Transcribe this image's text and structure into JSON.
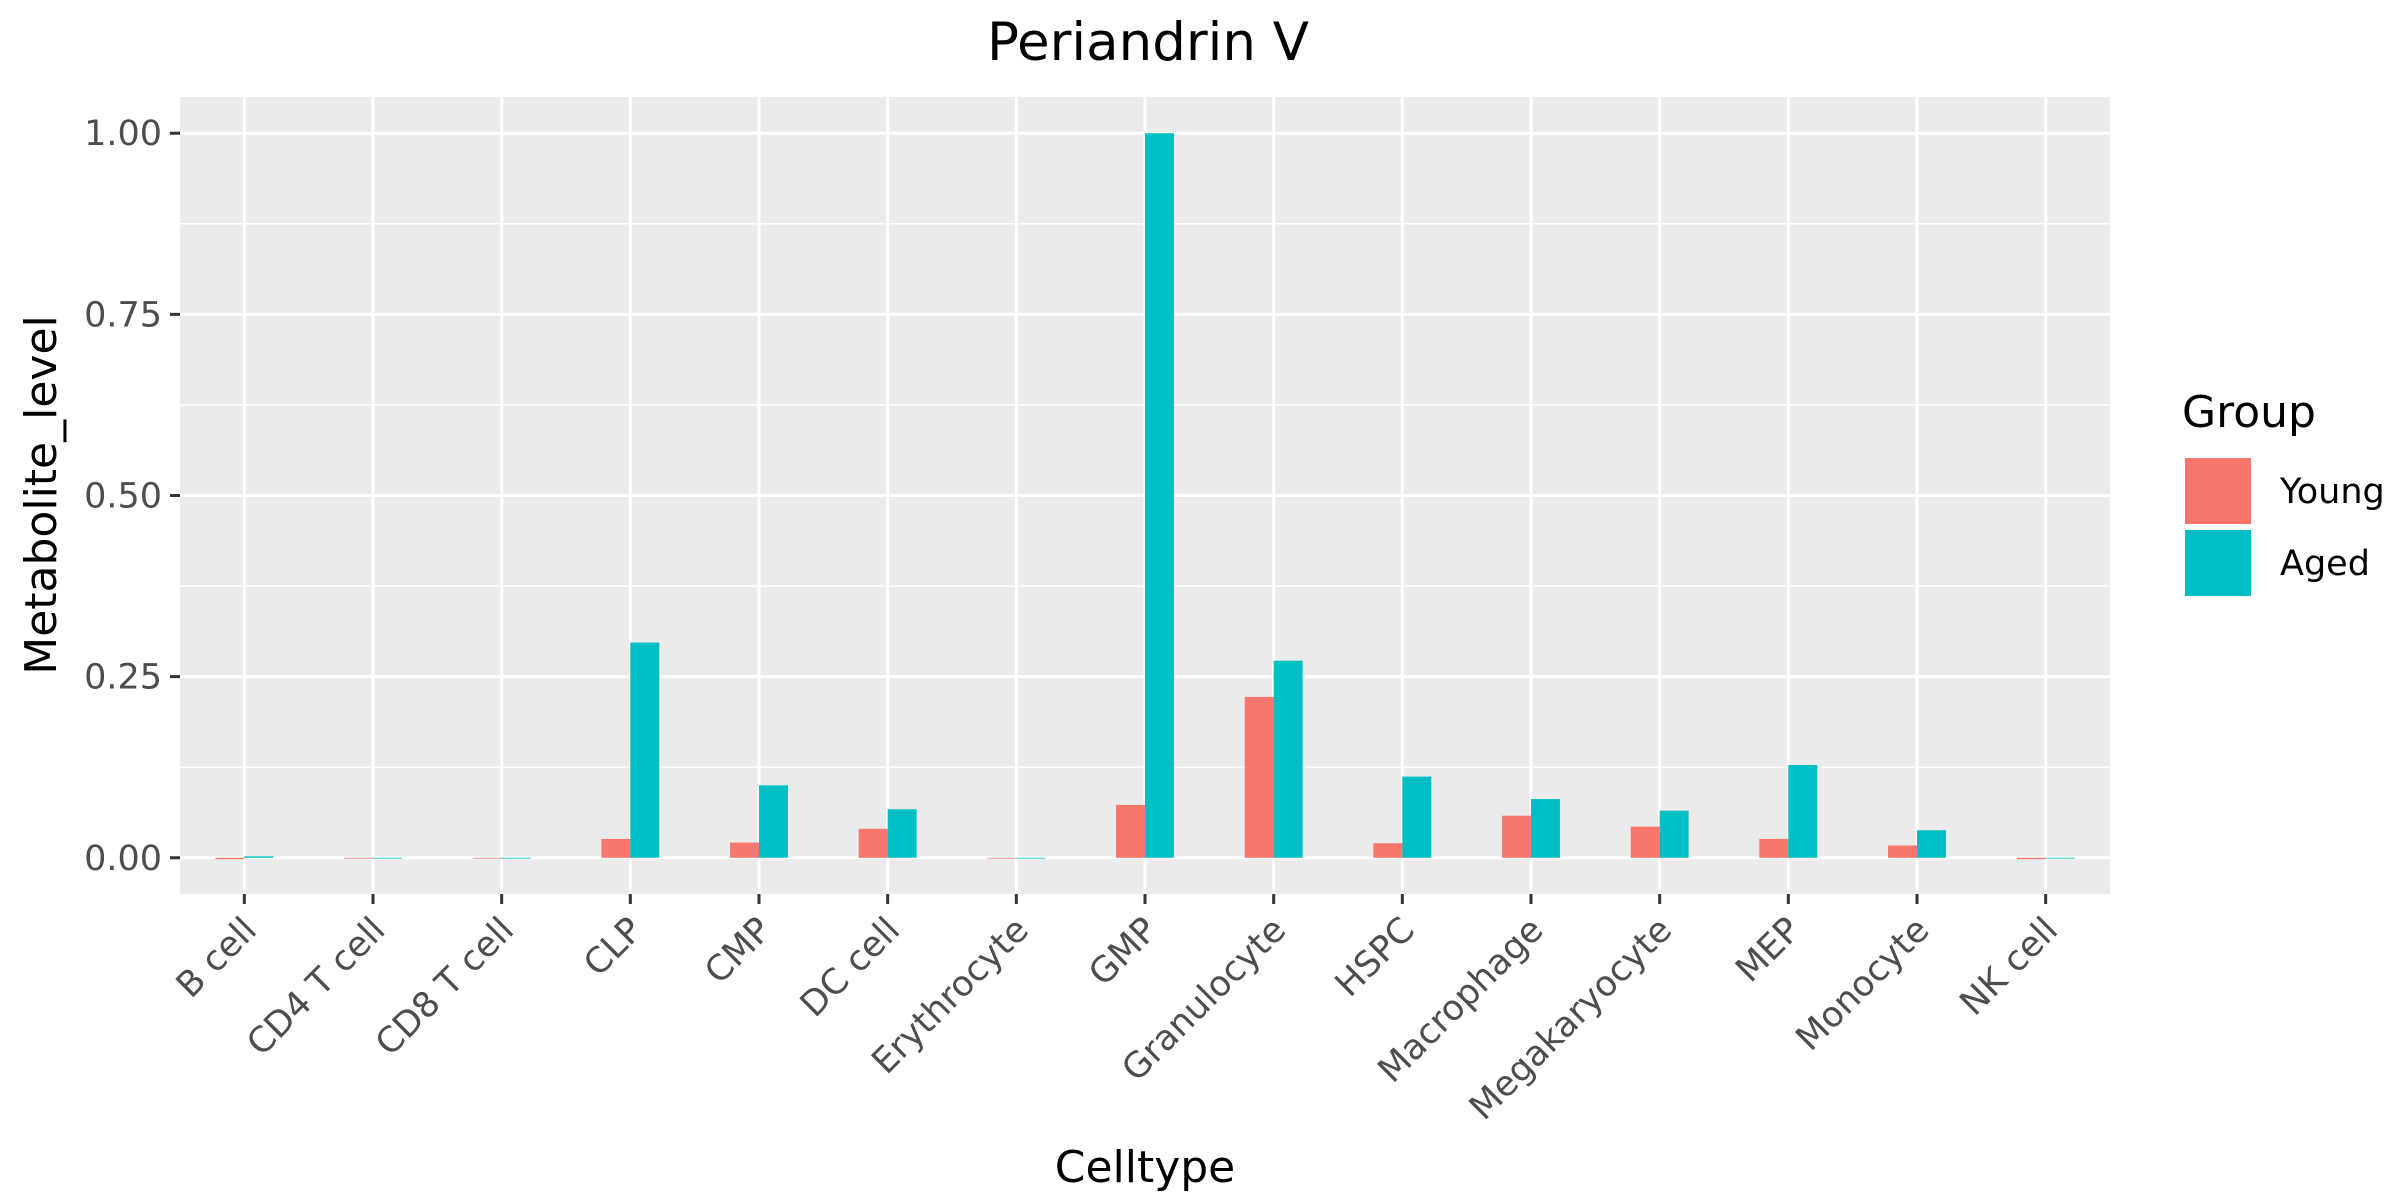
{
  "chart_data": {
    "type": "bar",
    "title": "Periandrin V",
    "xlabel": "Celltype",
    "ylabel": "Metabolite_level",
    "categories": [
      "B cell",
      "CD4 T cell",
      "CD8 T cell",
      "CLP",
      "CMP",
      "DC cell",
      "Erythrocyte",
      "GMP",
      "Granulocyte",
      "HSPC",
      "Macrophage",
      "Megakaryocyte",
      "MEP",
      "Monocyte",
      "NK cell"
    ],
    "series": [
      {
        "name": "Young",
        "color": "#F8766D",
        "values": [
          -0.002,
          0,
          0,
          0.026,
          0.021,
          0.04,
          0,
          0.073,
          0.222,
          0.02,
          0.058,
          0.043,
          0.026,
          0.017,
          -0.002
        ]
      },
      {
        "name": "Aged",
        "color": "#00BFC4",
        "values": [
          0.002,
          0,
          0,
          0.297,
          0.1,
          0.067,
          0,
          1.0,
          0.272,
          0.112,
          0.081,
          0.065,
          0.128,
          0.038,
          -0.001
        ]
      }
    ],
    "ylim": [
      -0.05,
      1.05
    ],
    "yticks": [
      0.0,
      0.25,
      0.5,
      0.75,
      1.0
    ],
    "ytick_labels": [
      "0.00",
      "0.25",
      "0.50",
      "0.75",
      "1.00"
    ],
    "grid": true,
    "legend": {
      "title": "Group",
      "position": "right"
    }
  }
}
